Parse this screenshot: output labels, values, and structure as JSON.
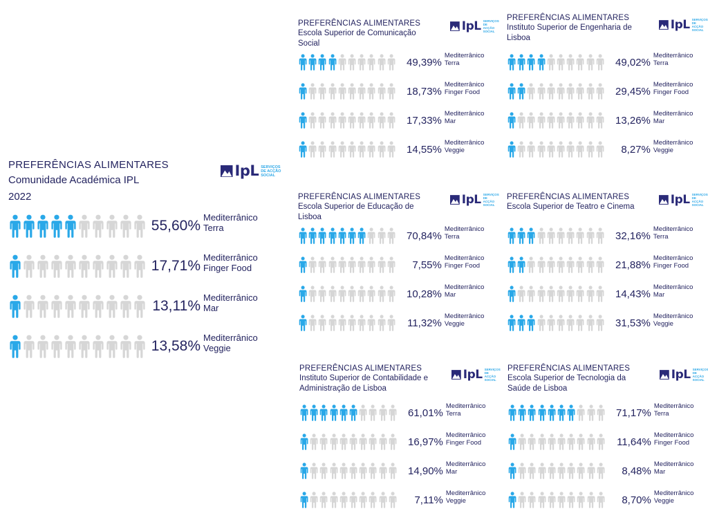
{
  "colors": {
    "filled": "#29a8e8",
    "empty": "#d6d6d6",
    "text": "#23235f",
    "logo_blue": "#2a2a78",
    "logo_accent": "#2ea8e7"
  },
  "logo": {
    "word": "IpL",
    "tag": [
      "SERVIÇOS",
      "DE ACÇÃO",
      "SOCIAL"
    ]
  },
  "chart_data": [
    {
      "type": "pictograph",
      "title": "PREFERÊNCIAS ALIMENTARES",
      "subtitle": "Comunidade Académica IPL",
      "year": "2022",
      "categories": [
        {
          "line1": "Mediterrânico",
          "line2": "Terra"
        },
        {
          "line1": "Mediterrânico",
          "line2": "Finger Food"
        },
        {
          "line1": "Mediterrânico",
          "line2": "Mar"
        },
        {
          "line1": "Mediterrânico",
          "line2": "Veggie"
        }
      ],
      "values": [
        55.6,
        17.71,
        13.11,
        13.58
      ],
      "labels": [
        "55,60%",
        "17,71%",
        "13,11%",
        "13,58%"
      ],
      "icons_total": 10,
      "icons_filled": [
        5,
        1,
        1,
        1
      ]
    },
    {
      "type": "pictograph",
      "title": "PREFERÊNCIAS ALIMENTARES",
      "subtitle": "Escola Superior de Comunicação Social",
      "categories": [
        {
          "line1": "Mediterrânico",
          "line2": "Terra"
        },
        {
          "line1": "Mediterrânico",
          "line2": "Finger Food"
        },
        {
          "line1": "Mediterrânico",
          "line2": "Mar"
        },
        {
          "line1": "Mediterrânico",
          "line2": "Veggie"
        }
      ],
      "values": [
        49.39,
        18.73,
        17.33,
        14.55
      ],
      "labels": [
        "49,39%",
        "18,73%",
        "17,33%",
        "14,55%"
      ],
      "icons_total": 10,
      "icons_filled": [
        4,
        1,
        1,
        1
      ]
    },
    {
      "type": "pictograph",
      "title": "PREFERÊNCIAS ALIMENTARES",
      "subtitle": "Instituto Superior de Engenharia de Lisboa",
      "categories": [
        {
          "line1": "Mediterrânico",
          "line2": "Terra"
        },
        {
          "line1": "Mediterrânico",
          "line2": "Finger Food"
        },
        {
          "line1": "Mediterrânico",
          "line2": "Mar"
        },
        {
          "line1": "Mediterrânico",
          "line2": "Veggie"
        }
      ],
      "values": [
        49.02,
        29.45,
        13.26,
        8.27
      ],
      "labels": [
        "49,02%",
        "29,45%",
        "13,26%",
        "8,27%"
      ],
      "icons_total": 10,
      "icons_filled": [
        4,
        2,
        1,
        1
      ]
    },
    {
      "type": "pictograph",
      "title": "PREFERÊNCIAS ALIMENTARES",
      "subtitle": "Escola Superior de Educação de Lisboa",
      "categories": [
        {
          "line1": "Mediterrânico",
          "line2": "Terra"
        },
        {
          "line1": "Mediterrânico",
          "line2": "Finger Food"
        },
        {
          "line1": "Mediterrânico",
          "line2": "Mar"
        },
        {
          "line1": "Mediterrânico",
          "line2": "Veggie"
        }
      ],
      "values": [
        70.84,
        7.55,
        10.28,
        11.32
      ],
      "labels": [
        "70,84%",
        "7,55%",
        "10,28%",
        "11,32%"
      ],
      "icons_total": 10,
      "icons_filled": [
        7,
        1,
        1,
        1
      ]
    },
    {
      "type": "pictograph",
      "title": "PREFERÊNCIAS ALIMENTARES",
      "subtitle": "Escola Superior de Teatro e Cinema",
      "categories": [
        {
          "line1": "Mediterrânico",
          "line2": "Terra"
        },
        {
          "line1": "Mediterrânico",
          "line2": "Finger Food"
        },
        {
          "line1": "Mediterrânico",
          "line2": "Mar"
        },
        {
          "line1": "Mediterrânico",
          "line2": "Veggie"
        }
      ],
      "values": [
        32.16,
        21.88,
        14.43,
        31.53
      ],
      "labels": [
        "32,16%",
        "21,88%",
        "14,43%",
        "31,53%"
      ],
      "icons_total": 10,
      "icons_filled": [
        3,
        2,
        1,
        3
      ]
    },
    {
      "type": "pictograph",
      "title": "PREFERÊNCIAS ALIMENTARES",
      "subtitle": "Instituto Superior de Contabilidade e Administração de Lisboa",
      "categories": [
        {
          "line1": "Mediterrânico",
          "line2": "Terra"
        },
        {
          "line1": "Mediterrânico",
          "line2": "Finger Food"
        },
        {
          "line1": "Mediterrânico",
          "line2": "Mar"
        },
        {
          "line1": "Mediterrânico",
          "line2": "Veggie"
        }
      ],
      "values": [
        61.01,
        16.97,
        14.9,
        7.11
      ],
      "labels": [
        "61,01%",
        "16,97%",
        "14,90%",
        "7,11%"
      ],
      "icons_total": 10,
      "icons_filled": [
        6,
        1,
        1,
        1
      ]
    },
    {
      "type": "pictograph",
      "title": "PREFERÊNCIAS ALIMENTARES",
      "subtitle": "Escola Superior de Tecnologia da Saúde de Lisboa",
      "categories": [
        {
          "line1": "Mediterrânico",
          "line2": "Terra"
        },
        {
          "line1": "Mediterrânico",
          "line2": "Finger Food"
        },
        {
          "line1": "Mediterrânico",
          "line2": "Mar"
        },
        {
          "line1": "Mediterrânico",
          "line2": "Veggie"
        }
      ],
      "values": [
        71.17,
        11.64,
        8.48,
        8.7
      ],
      "labels": [
        "71,17%",
        "11,64%",
        "8,48%",
        "8,70%"
      ],
      "icons_total": 10,
      "icons_filled": [
        7,
        1,
        1,
        1
      ]
    }
  ]
}
